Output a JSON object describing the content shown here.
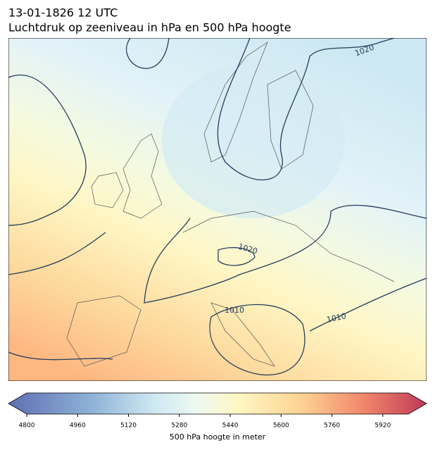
{
  "header": {
    "title": "13-01-1826 12 UTC",
    "subtitle": "Luchtdruk op zeeniveau in hPa en 500 hPa hoogte"
  },
  "map": {
    "contour_labels": [
      "1020",
      "1020",
      "1010",
      "1010"
    ]
  },
  "colorbar": {
    "lim": [
      4800,
      6000
    ],
    "ticks": [
      4800,
      4960,
      5120,
      5280,
      5440,
      5600,
      5760,
      5920
    ],
    "label": "500 hPa hoogte in meter"
  }
}
